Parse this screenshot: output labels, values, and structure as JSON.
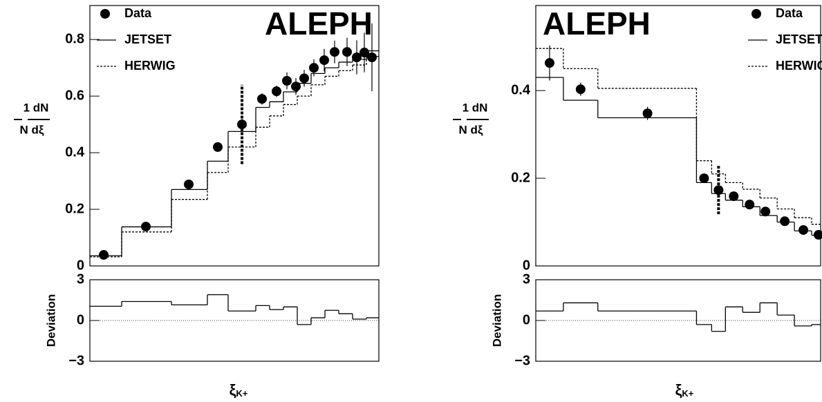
{
  "chart_data": [
    {
      "type": "scatter",
      "title": "ALEPH",
      "legend": "upper left",
      "ylabel_num": "1 dN",
      "ylabel_den": "N dξ",
      "xlabel": "ξ",
      "xlabel_sub": "K+",
      "xlim": [
        0,
        4.18
      ],
      "ylim": [
        0,
        0.92
      ],
      "yticks": [
        0,
        0.2,
        0.4,
        0.6,
        0.8
      ],
      "series": [
        {
          "name": "Data",
          "color": "#000000",
          "x": [
            0.2,
            0.81,
            1.43,
            1.85,
            2.2,
            2.49,
            2.7,
            2.85,
            2.98,
            3.1,
            3.24,
            3.39,
            3.54,
            3.72,
            3.86,
            3.97,
            4.08
          ],
          "values": [
            0.039,
            0.139,
            0.288,
            0.42,
            0.5,
            0.59,
            0.617,
            0.654,
            0.634,
            0.663,
            0.7,
            0.727,
            0.756,
            0.756,
            0.737,
            0.754,
            0.737
          ],
          "errors": [
            0.01,
            0.01,
            0.012,
            0.015,
            0.02,
            0.02,
            0.02,
            0.03,
            0.03,
            0.03,
            0.03,
            0.04,
            0.04,
            0.05,
            0.06,
            0.07,
            0.12
          ]
        },
        {
          "name": "JETSET",
          "color": "#000000",
          "dashed": false,
          "bins": [
            0,
            0.46,
            1.18,
            1.7,
            2.0,
            2.4,
            2.6,
            2.8,
            3.0,
            3.2,
            3.4,
            3.6,
            3.8,
            4.0,
            4.18
          ],
          "values": [
            0.036,
            0.138,
            0.27,
            0.37,
            0.475,
            0.56,
            0.58,
            0.615,
            0.645,
            0.68,
            0.7,
            0.72,
            0.73,
            0.76
          ]
        },
        {
          "name": "HERWIG",
          "color": "#000000",
          "dashed": true,
          "bins": [
            0,
            0.46,
            1.18,
            1.7,
            2.0,
            2.4,
            2.6,
            2.8,
            3.0,
            3.2,
            3.4,
            3.6,
            3.8,
            4.0,
            4.18
          ],
          "values": [
            0.032,
            0.12,
            0.235,
            0.33,
            0.42,
            0.49,
            0.53,
            0.57,
            0.6,
            0.64,
            0.67,
            0.69,
            0.71,
            0.74
          ]
        }
      ],
      "syst_bar": {
        "x": 2.2,
        "range": [
          0.36,
          0.64
        ]
      },
      "deviation": {
        "ylabel": "Deviation",
        "ylim": [
          -3,
          3
        ],
        "yticks": [
          {
            "value": -3,
            "label": "−3"
          },
          0,
          3
        ],
        "bins": [
          0,
          0.46,
          1.18,
          1.7,
          2.0,
          2.4,
          2.6,
          2.8,
          3.0,
          3.2,
          3.4,
          3.6,
          3.8,
          4.0,
          4.18
        ],
        "values": [
          1.05,
          1.4,
          1.15,
          1.9,
          0.7,
          1.1,
          0.8,
          1.0,
          -0.3,
          0.2,
          0.75,
          0.5,
          0.1,
          0.2
        ]
      }
    },
    {
      "type": "scatter",
      "title": "ALEPH",
      "legend": "upper right",
      "ylabel_num": "1 dN",
      "ylabel_den": "N dξ",
      "xlabel": "ξ",
      "xlabel_sub": "K+",
      "xlim": [
        0,
        4.13
      ],
      "ylim": [
        0,
        0.594
      ],
      "yticks": [
        0,
        0.2,
        0.4
      ],
      "series": [
        {
          "name": "Data",
          "color": "#000000",
          "x": [
            0.2,
            0.65,
            1.62,
            2.44,
            2.65,
            2.87,
            3.1,
            3.33,
            3.61,
            3.88,
            4.1
          ],
          "values": [
            0.463,
            0.403,
            0.348,
            0.2,
            0.173,
            0.159,
            0.14,
            0.124,
            0.102,
            0.082,
            0.071
          ],
          "errors": [
            0.04,
            0.015,
            0.015,
            0.01,
            0.01,
            0.01,
            0.008,
            0.008,
            0.008,
            0.008,
            0.008
          ]
        },
        {
          "name": "JETSET",
          "color": "#000000",
          "dashed": false,
          "bins": [
            0,
            0.4,
            0.9,
            2.33,
            2.55,
            2.75,
            3.0,
            3.25,
            3.5,
            3.75,
            4.0,
            4.13
          ],
          "values": [
            0.43,
            0.378,
            0.338,
            0.19,
            0.165,
            0.15,
            0.135,
            0.115,
            0.1,
            0.08,
            0.07
          ]
        },
        {
          "name": "HERWIG",
          "color": "#000000",
          "dashed": true,
          "bins": [
            0,
            0.4,
            0.9,
            2.33,
            2.55,
            2.75,
            3.0,
            3.25,
            3.5,
            3.75,
            4.0,
            4.13
          ],
          "values": [
            0.496,
            0.45,
            0.405,
            0.24,
            0.21,
            0.19,
            0.175,
            0.155,
            0.13,
            0.11,
            0.095
          ]
        }
      ],
      "syst_bar": {
        "x": 2.65,
        "range": [
          0.118,
          0.228
        ]
      },
      "deviation": {
        "ylabel": "Deviation",
        "ylim": [
          -3,
          3
        ],
        "yticks": [
          {
            "value": -3,
            "label": "−3"
          },
          0,
          3
        ],
        "bins": [
          0,
          0.4,
          0.9,
          2.33,
          2.55,
          2.75,
          3.0,
          3.25,
          3.5,
          3.75,
          4.0,
          4.13
        ],
        "values": [
          0.7,
          1.3,
          0.7,
          -0.3,
          -0.8,
          1.0,
          0.6,
          1.3,
          0.4,
          -0.4,
          -0.3
        ]
      }
    }
  ]
}
